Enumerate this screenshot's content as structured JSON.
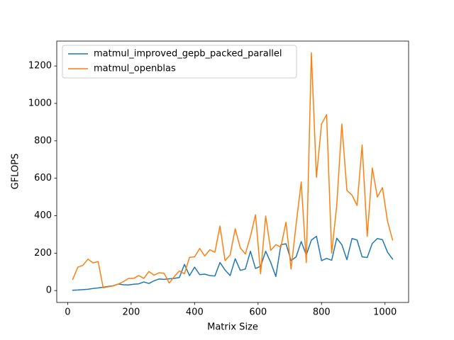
{
  "chart_data": {
    "type": "line",
    "x_label": "Matrix Size",
    "y_label": "GFLOPS",
    "x": [
      16,
      32,
      48,
      64,
      80,
      96,
      112,
      128,
      144,
      160,
      176,
      192,
      208,
      224,
      240,
      256,
      272,
      288,
      304,
      320,
      336,
      352,
      368,
      384,
      400,
      416,
      432,
      448,
      464,
      480,
      496,
      512,
      528,
      544,
      560,
      576,
      592,
      608,
      624,
      640,
      656,
      672,
      688,
      704,
      720,
      736,
      752,
      768,
      784,
      800,
      816,
      832,
      848,
      864,
      880,
      896,
      912,
      928,
      944,
      960,
      976,
      992,
      1008,
      1024
    ],
    "series": [
      {
        "name": "matmul_improved_gepb_packed_parallel",
        "color": "#1f77b4",
        "values": [
          2,
          3,
          5,
          7,
          11,
          14,
          18,
          22,
          26,
          35,
          31,
          30,
          34,
          36,
          46,
          38,
          52,
          62,
          60,
          63,
          65,
          70,
          140,
          80,
          125,
          85,
          88,
          80,
          78,
          150,
          110,
          80,
          170,
          108,
          115,
          210,
          118,
          130,
          210,
          150,
          75,
          245,
          250,
          160,
          180,
          262,
          190,
          270,
          290,
          160,
          172,
          162,
          280,
          245,
          165,
          278,
          270,
          180,
          177,
          252,
          278,
          272,
          205,
          168
        ]
      },
      {
        "name": "matmul_openblas",
        "color": "#ff7f0e",
        "values": [
          60,
          125,
          135,
          168,
          148,
          155,
          15,
          20,
          25,
          35,
          48,
          65,
          65,
          80,
          65,
          102,
          82,
          95,
          92,
          40,
          75,
          105,
          90,
          178,
          180,
          225,
          185,
          218,
          205,
          345,
          160,
          190,
          330,
          228,
          195,
          290,
          405,
          90,
          398,
          215,
          245,
          232,
          365,
          115,
          355,
          580,
          150,
          1270,
          605,
          890,
          940,
          200,
          455,
          890,
          535,
          510,
          455,
          778,
          290,
          655,
          500,
          550,
          370,
          270
        ]
      }
    ],
    "xlim": [
      -34.4,
      1074.4
    ],
    "ylim": [
      -63.5,
      1333
    ],
    "xticks": [
      0,
      200,
      400,
      600,
      800,
      1000
    ],
    "yticks": [
      0,
      200,
      400,
      600,
      800,
      1000,
      1200
    ],
    "legend": "upper left"
  }
}
